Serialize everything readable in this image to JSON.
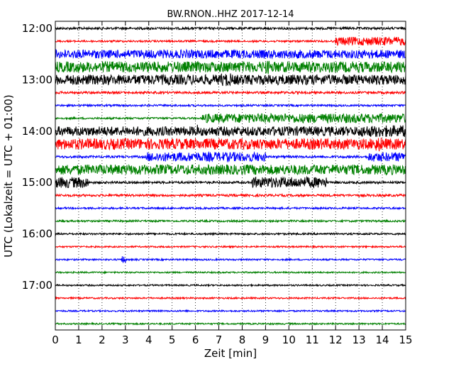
{
  "chart_data": {
    "type": "line",
    "title": "BW.RNON..HHZ 2017-12-14",
    "xlabel": "Zeit  [min]",
    "ylabel": "UTC (Lokalzeit = UTC + 01:00)",
    "xlim": [
      0,
      15
    ],
    "x_ticks": [
      "0",
      "1",
      "2",
      "3",
      "4",
      "5",
      "6",
      "7",
      "8",
      "9",
      "10",
      "11",
      "12",
      "13",
      "14",
      "15"
    ],
    "y_tick_labels": [
      "12:00",
      "13:00",
      "14:00",
      "15:00",
      "16:00",
      "17:00"
    ],
    "y_tick_times": [
      "12:00",
      "13:00",
      "14:00",
      "15:00",
      "16:00",
      "17:00"
    ],
    "grid": "vertical dotted",
    "series": [
      {
        "time": "12:00",
        "color": "#000000",
        "amp": 0.15
      },
      {
        "time": "12:15",
        "color": "#ff0000",
        "amp": 0.12,
        "events": [
          {
            "start": 12.0,
            "end": 15.0,
            "amp": 0.55
          }
        ]
      },
      {
        "time": "12:30",
        "color": "#0000ff",
        "amp": 0.55
      },
      {
        "time": "12:45",
        "color": "#008000",
        "amp": 0.7,
        "events": [
          {
            "start": 9.0,
            "end": 9.2,
            "amp": 0.9
          }
        ]
      },
      {
        "time": "13:00",
        "color": "#000000",
        "amp": 0.65,
        "events": [
          {
            "start": 7.1,
            "end": 7.5,
            "amp": 0.85
          }
        ]
      },
      {
        "time": "13:15",
        "color": "#ff0000",
        "amp": 0.15
      },
      {
        "time": "13:30",
        "color": "#0000ff",
        "amp": 0.12
      },
      {
        "time": "13:45",
        "color": "#008000",
        "amp": 0.12,
        "events": [
          {
            "start": 6.3,
            "end": 15.0,
            "amp": 0.6
          }
        ]
      },
      {
        "time": "14:00",
        "color": "#000000",
        "amp": 0.6,
        "events": [
          {
            "start": 6.0,
            "end": 6.1,
            "amp": 0.85
          },
          {
            "start": 13.0,
            "end": 15.0,
            "amp": 0.75
          }
        ]
      },
      {
        "time": "14:15",
        "color": "#ff0000",
        "amp": 0.7,
        "events": [
          {
            "start": 13.7,
            "end": 14.0,
            "amp": 0.95
          }
        ]
      },
      {
        "time": "14:30",
        "color": "#0000ff",
        "amp": 0.15,
        "events": [
          {
            "start": 3.9,
            "end": 9.0,
            "amp": 0.6
          },
          {
            "start": 13.4,
            "end": 15.0,
            "amp": 0.6
          }
        ]
      },
      {
        "time": "14:45",
        "color": "#008000",
        "amp": 0.65
      },
      {
        "time": "15:00",
        "color": "#000000",
        "amp": 0.15,
        "events": [
          {
            "start": 0,
            "end": 1.4,
            "amp": 0.7
          },
          {
            "start": 8.4,
            "end": 11.6,
            "amp": 0.7
          }
        ]
      },
      {
        "time": "15:15",
        "color": "#ff0000",
        "amp": 0.15
      },
      {
        "time": "15:30",
        "color": "#0000ff",
        "amp": 0.12
      },
      {
        "time": "15:45",
        "color": "#008000",
        "amp": 0.12
      },
      {
        "time": "16:00",
        "color": "#000000",
        "amp": 0.12
      },
      {
        "time": "16:15",
        "color": "#ff0000",
        "amp": 0.1
      },
      {
        "time": "16:30",
        "color": "#0000ff",
        "amp": 0.1,
        "events": [
          {
            "start": 2.8,
            "end": 3.0,
            "amp": 0.45
          }
        ]
      },
      {
        "time": "16:45",
        "color": "#008000",
        "amp": 0.1
      },
      {
        "time": "17:00",
        "color": "#000000",
        "amp": 0.1
      },
      {
        "time": "17:15",
        "color": "#ff0000",
        "amp": 0.1
      },
      {
        "time": "17:30",
        "color": "#0000ff",
        "amp": 0.1
      },
      {
        "time": "17:45",
        "color": "#008000",
        "amp": 0.1
      }
    ]
  }
}
